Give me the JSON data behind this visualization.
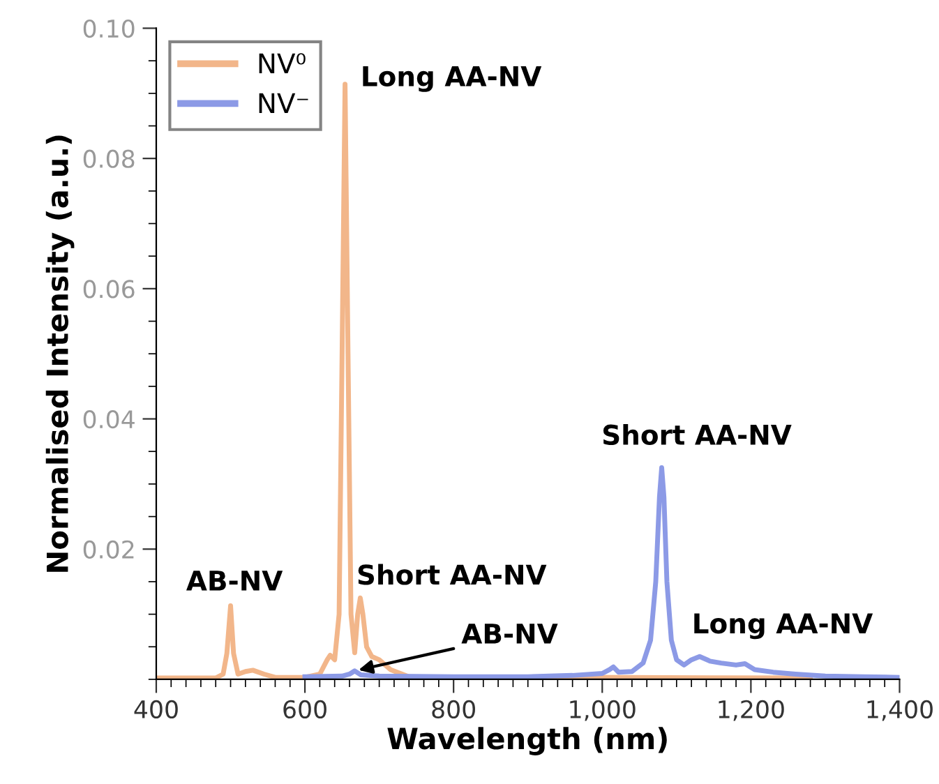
{
  "chart_data": {
    "type": "line",
    "xlabel": "Wavelength (nm)",
    "ylabel": "Normalised Intensity (a.u.)",
    "xlim": [
      400,
      1400
    ],
    "xticks": [
      {
        "value": 400,
        "label": "400"
      },
      {
        "value": 600,
        "label": "600"
      },
      {
        "value": 800,
        "label": "800"
      },
      {
        "value": 1000,
        "label": "1,000"
      },
      {
        "value": 1200,
        "label": "1,200"
      },
      {
        "value": 1400,
        "label": "1,400"
      }
    ],
    "ylim": [
      0,
      0.1
    ],
    "yticks": [
      {
        "value": 0.02,
        "label": "0.02"
      },
      {
        "value": 0.04,
        "label": "0.04"
      },
      {
        "value": 0.06,
        "label": "0.06"
      },
      {
        "value": 0.08,
        "label": "0.08"
      },
      {
        "value": 0.1,
        "label": "0.10"
      }
    ],
    "grid": false,
    "legend": "top left",
    "marker": "none",
    "line_style": "solid",
    "series": [
      {
        "name": "NV⁰",
        "color": "#f2b68a",
        "x": [
          400,
          480,
          490,
          495,
          500,
          504,
          510,
          520,
          530,
          545,
          560,
          600,
          620,
          630,
          634,
          640,
          646,
          650,
          654,
          658,
          662,
          667,
          671,
          674.5,
          678,
          683,
          690,
          700,
          715,
          740,
          1280
        ],
        "values": [
          0.0002,
          0.0002,
          0.0008,
          0.004,
          0.0113,
          0.004,
          0.0008,
          0.0012,
          0.0014,
          0.0008,
          0.0003,
          0.0003,
          0.0008,
          0.003,
          0.0037,
          0.003,
          0.01,
          0.05,
          0.0914,
          0.05,
          0.01,
          0.0041,
          0.01,
          0.0125,
          0.01,
          0.005,
          0.0035,
          0.003,
          0.0015,
          0.0004,
          0.0002
        ]
      },
      {
        "name": "NV⁻",
        "color": "#8c9ae6",
        "x": [
          600,
          650,
          660,
          667,
          675,
          700,
          800,
          900,
          960,
          1000,
          1010,
          1015,
          1022,
          1040,
          1055,
          1065,
          1072,
          1077,
          1080,
          1083,
          1087,
          1093,
          1100,
          1110,
          1120,
          1131,
          1145,
          1160,
          1180,
          1192,
          1205,
          1230,
          1260,
          1300,
          1350,
          1400
        ],
        "values": [
          0.0004,
          0.0005,
          0.0008,
          0.0013,
          0.0007,
          0.0005,
          0.0004,
          0.0004,
          0.0006,
          0.0009,
          0.0015,
          0.0019,
          0.0011,
          0.0012,
          0.0025,
          0.006,
          0.015,
          0.028,
          0.0325,
          0.028,
          0.015,
          0.006,
          0.003,
          0.0022,
          0.003,
          0.0035,
          0.0028,
          0.0025,
          0.0022,
          0.0024,
          0.0015,
          0.0011,
          0.0008,
          0.0005,
          0.0004,
          0.0003
        ]
      }
    ],
    "annotations": [
      {
        "text": "Long AA-NV",
        "x": 654,
        "y": 0.0914
      },
      {
        "text": "AB-NV",
        "x": 500,
        "y": 0.0113
      },
      {
        "text": "Short AA-NV",
        "x": 674.5,
        "y": 0.0125
      },
      {
        "text": "AB-NV",
        "x": 667,
        "y": 0.0013
      },
      {
        "text": "Short AA-NV",
        "x": 1080,
        "y": 0.0325
      },
      {
        "text": "Long AA-NV",
        "x": 1131,
        "y": 0.0035
      }
    ]
  }
}
